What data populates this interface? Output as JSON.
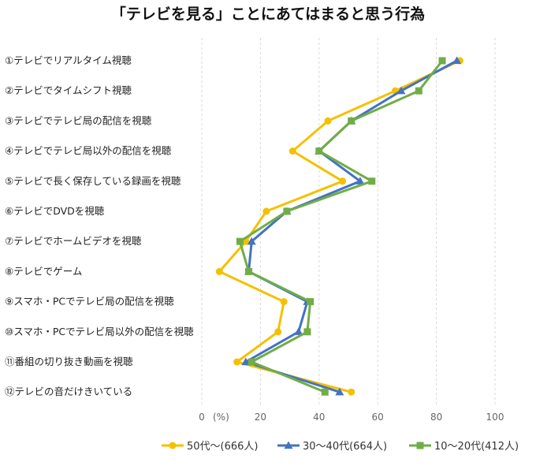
{
  "chart_data": {
    "type": "line",
    "orientation": "horizontal",
    "title": "「テレビを見る」ことにあてはまると思う行為",
    "xlabel": "(%)",
    "xlim": [
      0,
      100
    ],
    "x_ticks": [
      "0",
      "20",
      "40",
      "60",
      "80",
      "100"
    ],
    "grid": "vertical-dashed",
    "legend_position": "bottom",
    "categories": [
      "①テレビでリアルタイム視聴",
      "②テレビでタイムシフト視聴",
      "③テレビでテレビ局の配信を視聴",
      "④テレビでテレビ局以外の配信を視聴",
      "⑤テレビで長く保存している録画を視聴",
      "⑥テレビでDVDを視聴",
      "⑦テレビでホームビデオを視聴",
      "⑧テレビでゲーム",
      "⑨スマホ・PCでテレビ局の配信を視聴",
      "⑩スマホ・PCでテレビ局以外の配信を視聴",
      "⑪番組の切り抜き動画を視聴",
      "⑫テレビの音だけきいている"
    ],
    "series": [
      {
        "name": "50代～(666人)",
        "color": "#f5c000",
        "marker": "circle",
        "values": [
          88,
          66,
          43,
          31,
          48,
          22,
          15,
          6,
          28,
          26,
          12,
          51
        ]
      },
      {
        "name": "30～40代(664人)",
        "color": "#4472c4",
        "marker": "triangle",
        "values": [
          87,
          68,
          51,
          40,
          54,
          29,
          17,
          16,
          36,
          33,
          15,
          47
        ]
      },
      {
        "name": "10～20代(412人)",
        "color": "#70ad47",
        "marker": "square",
        "values": [
          82,
          74,
          51,
          40,
          58,
          29,
          13,
          16,
          37,
          36,
          17,
          42
        ]
      }
    ]
  }
}
